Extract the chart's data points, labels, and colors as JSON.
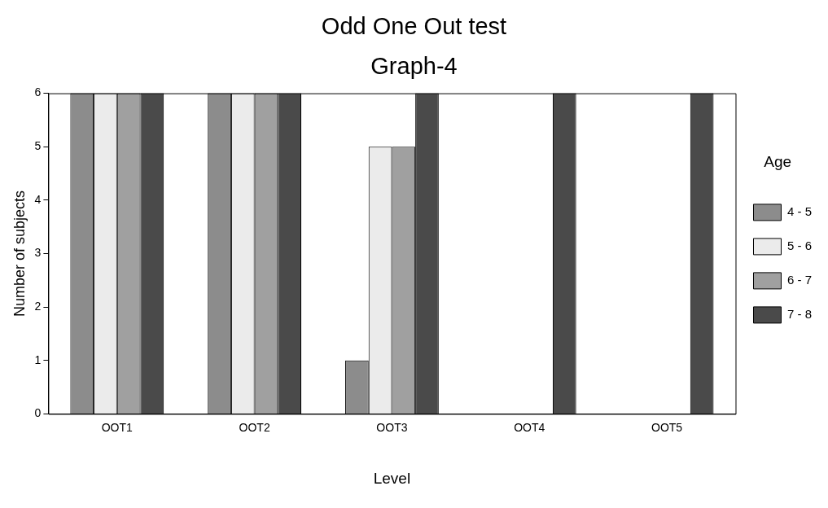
{
  "chart_data": {
    "type": "bar",
    "title": "Odd One Out test",
    "subtitle": "Graph-4",
    "xlabel": "Level",
    "ylabel": "Number of subjects",
    "legend_title": "Age",
    "categories": [
      "OOT1",
      "OOT2",
      "OOT3",
      "OOT4",
      "OOT5"
    ],
    "series": [
      {
        "name": "4 - 5",
        "color": "#8c8c8c",
        "values": [
          6,
          6,
          1,
          0,
          0
        ]
      },
      {
        "name": "5 - 6",
        "color": "#ebebeb",
        "values": [
          6,
          6,
          5,
          0,
          0
        ]
      },
      {
        "name": "6 - 7",
        "color": "#a0a0a0",
        "values": [
          6,
          6,
          5,
          0,
          0
        ]
      },
      {
        "name": "7 - 8",
        "color": "#4a4a4a",
        "values": [
          6,
          6,
          6,
          6,
          6
        ]
      }
    ],
    "ylim": [
      0,
      6
    ],
    "yticks": [
      0,
      1,
      2,
      3,
      4,
      5,
      6
    ],
    "grid": false,
    "legend": "right"
  }
}
